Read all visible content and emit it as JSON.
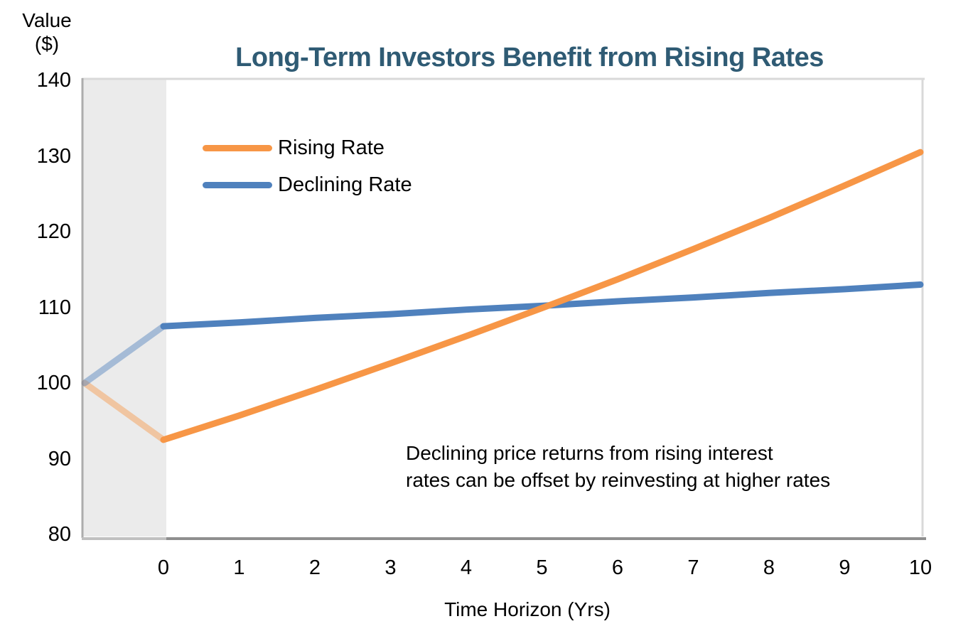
{
  "page": {
    "background": "#ffffff"
  },
  "chart_data": {
    "type": "line",
    "title": "Long-Term Investors Benefit from Rising Rates",
    "title_color": "#2F5B74",
    "y_axis": {
      "title_lines": [
        "Value",
        "($)"
      ],
      "min": 80,
      "max": 140,
      "ticks": [
        140,
        130,
        120,
        110,
        100,
        90,
        80
      ]
    },
    "x_axis": {
      "title": "Time Horizon (Yrs)",
      "min": 0,
      "max": 10,
      "pre_period_min": -1,
      "ticks": [
        0,
        1,
        2,
        3,
        4,
        5,
        6,
        7,
        8,
        9,
        10
      ]
    },
    "pre_period_shading": {
      "x_start": -1,
      "x_end": 0,
      "color": "#EBEBEB"
    },
    "series": [
      {
        "name": "Rising Rate",
        "color": "#F79646",
        "pre_period": {
          "x": [
            -1,
            0
          ],
          "values": [
            100,
            92.5
          ]
        },
        "x": [
          0,
          1,
          2,
          3,
          4,
          5,
          6,
          7,
          8,
          9,
          10
        ],
        "values": [
          92.5,
          95.7,
          99.1,
          102.6,
          106.2,
          109.9,
          113.7,
          117.7,
          121.8,
          126.1,
          130.5
        ]
      },
      {
        "name": "Declining Rate",
        "color": "#4F81BD",
        "pre_period": {
          "x": [
            -1,
            0
          ],
          "values": [
            100,
            107.5
          ]
        },
        "x": [
          0,
          1,
          2,
          3,
          4,
          5,
          6,
          7,
          8,
          9,
          10
        ],
        "values": [
          107.5,
          108.0,
          108.6,
          109.1,
          109.7,
          110.2,
          110.8,
          111.3,
          111.9,
          112.4,
          113.0
        ]
      }
    ],
    "annotation": {
      "lines": [
        "Declining price returns from rising interest",
        "rates can be offset by reinvesting at higher rates"
      ]
    },
    "legend_position": "top-left-inside",
    "grid": "off",
    "styles": {
      "plot_border_color": "#D9D9D9",
      "left_border_color": "#ACACAC",
      "axis_line_color": "#8F8F8F",
      "axis_line_color_under_shading": "#C0C0C0",
      "pre_period_line_opacity": 0.45
    }
  }
}
